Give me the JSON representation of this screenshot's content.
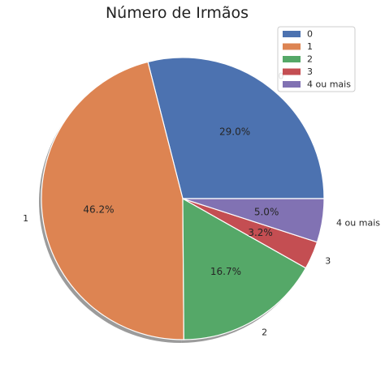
{
  "chart_data": {
    "type": "pie",
    "title": "Número de Irmãos",
    "labels": [
      "0",
      "1",
      "2",
      "3",
      "4 ou mais"
    ],
    "values": [
      29.0,
      46.2,
      16.7,
      3.2,
      5.0
    ],
    "value_labels": [
      "29.0%",
      "46.2%",
      "16.7%",
      "3.2%",
      "5.0%"
    ],
    "colors": [
      "#4C72B0",
      "#DD8452",
      "#55A868",
      "#C44E52",
      "#8172B3"
    ],
    "shadow": true,
    "start_angle_deg": 0,
    "direction": "counterclockwise",
    "legend": {
      "placement": "top-right",
      "entries": [
        "0",
        "1",
        "2",
        "3",
        "4 ou mais"
      ]
    }
  }
}
